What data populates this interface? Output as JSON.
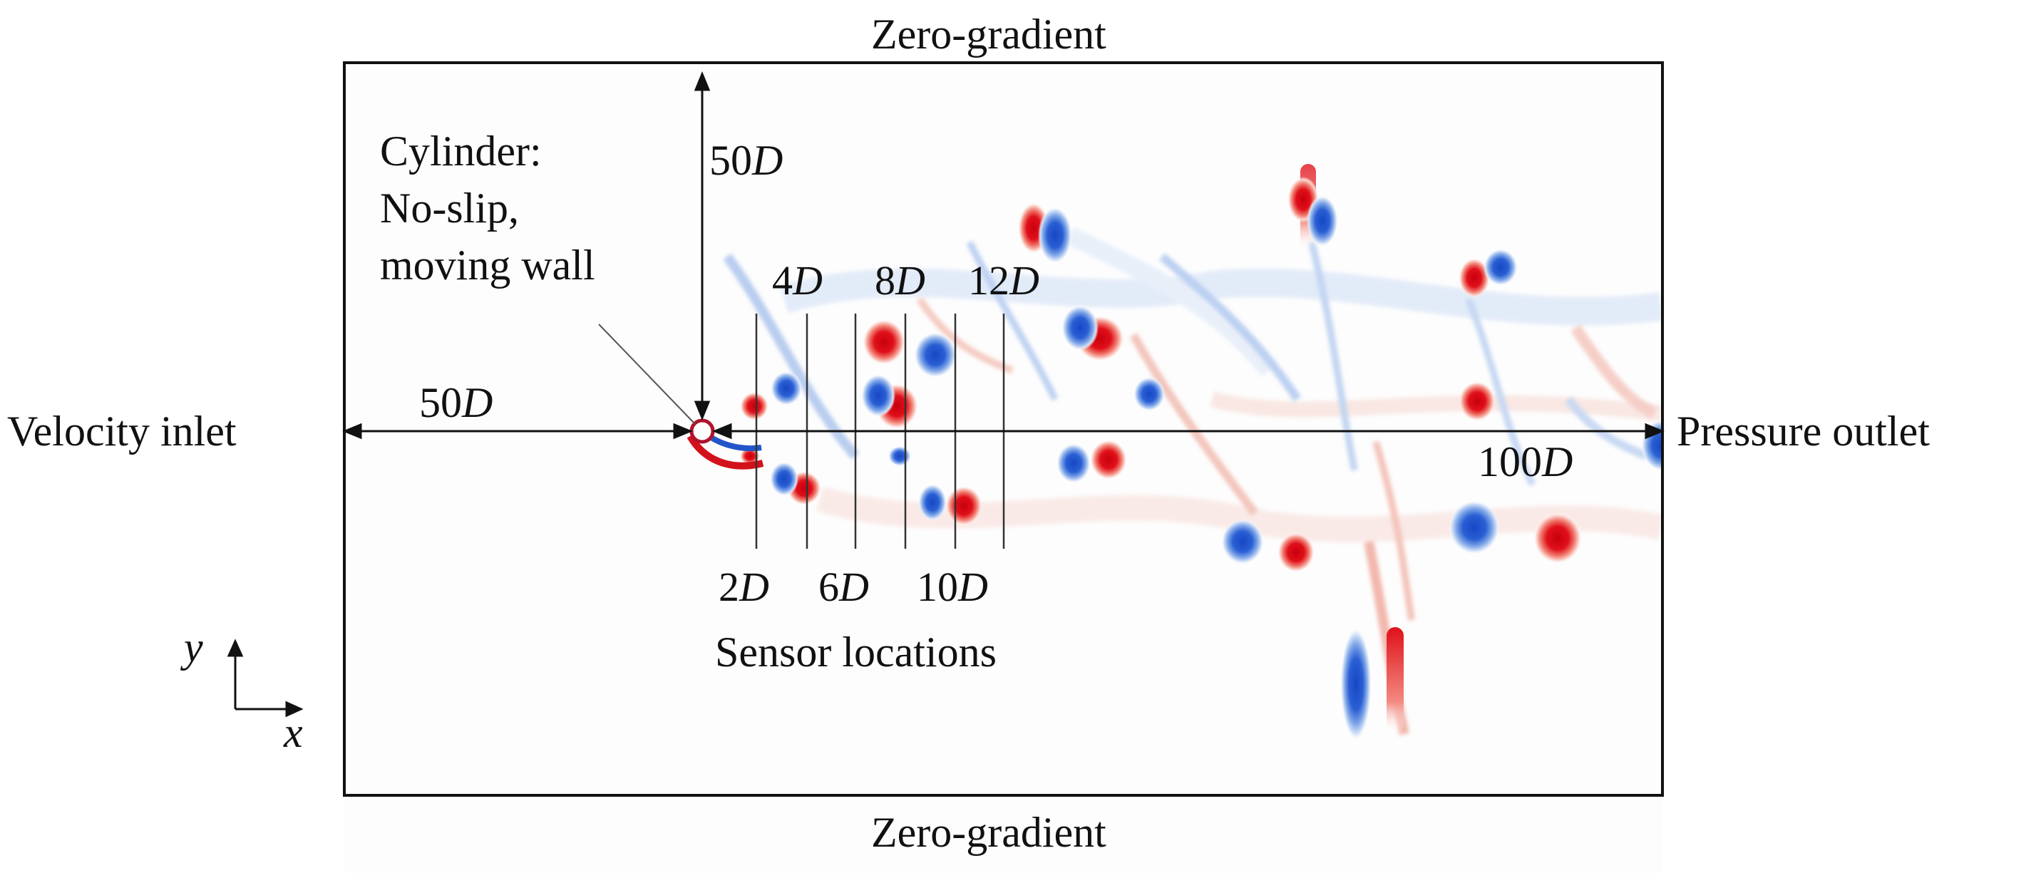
{
  "boundaries": {
    "top": "Zero-gradient",
    "bottom": "Zero-gradient",
    "left": "Velocity inlet",
    "right": "Pressure outlet"
  },
  "cylinder": {
    "line1": "Cylinder:",
    "line2": "No-slip,",
    "line3": "moving wall"
  },
  "dimensions": {
    "upstream": {
      "value": "50",
      "unit": "D"
    },
    "top": {
      "value": "50",
      "unit": "D"
    },
    "downstream": {
      "value": "100",
      "unit": "D"
    }
  },
  "sensors": {
    "caption": "Sensor locations",
    "unit": "D",
    "upper_labels": [
      "4",
      "8",
      "12"
    ],
    "lower_labels": [
      "2",
      "6",
      "10"
    ]
  },
  "axes": {
    "x": "x",
    "y": "y"
  },
  "colors": {
    "positive_vorticity": "#d3111a",
    "negative_vorticity": "#2255c9",
    "frame": "#111111"
  }
}
